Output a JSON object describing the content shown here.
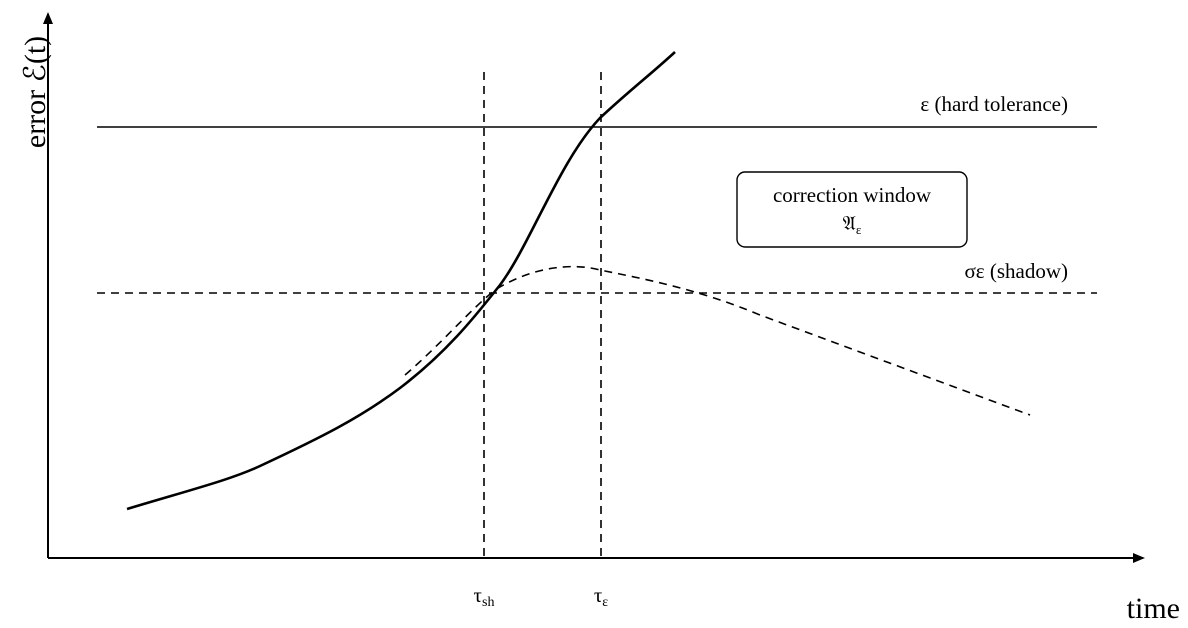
{
  "axes": {
    "y_label": "error ℰ(t)",
    "x_label": "time"
  },
  "thresholds": {
    "hard": "ε (hard tolerance)",
    "shadow": "σε (shadow)"
  },
  "markers": [
    {
      "symbol": "τ",
      "subscript": "sh"
    },
    {
      "symbol": "τ",
      "subscript": "ε"
    }
  ],
  "window_box": {
    "title": "correction window",
    "symbol": "𝔄",
    "subscript": "ε"
  }
}
